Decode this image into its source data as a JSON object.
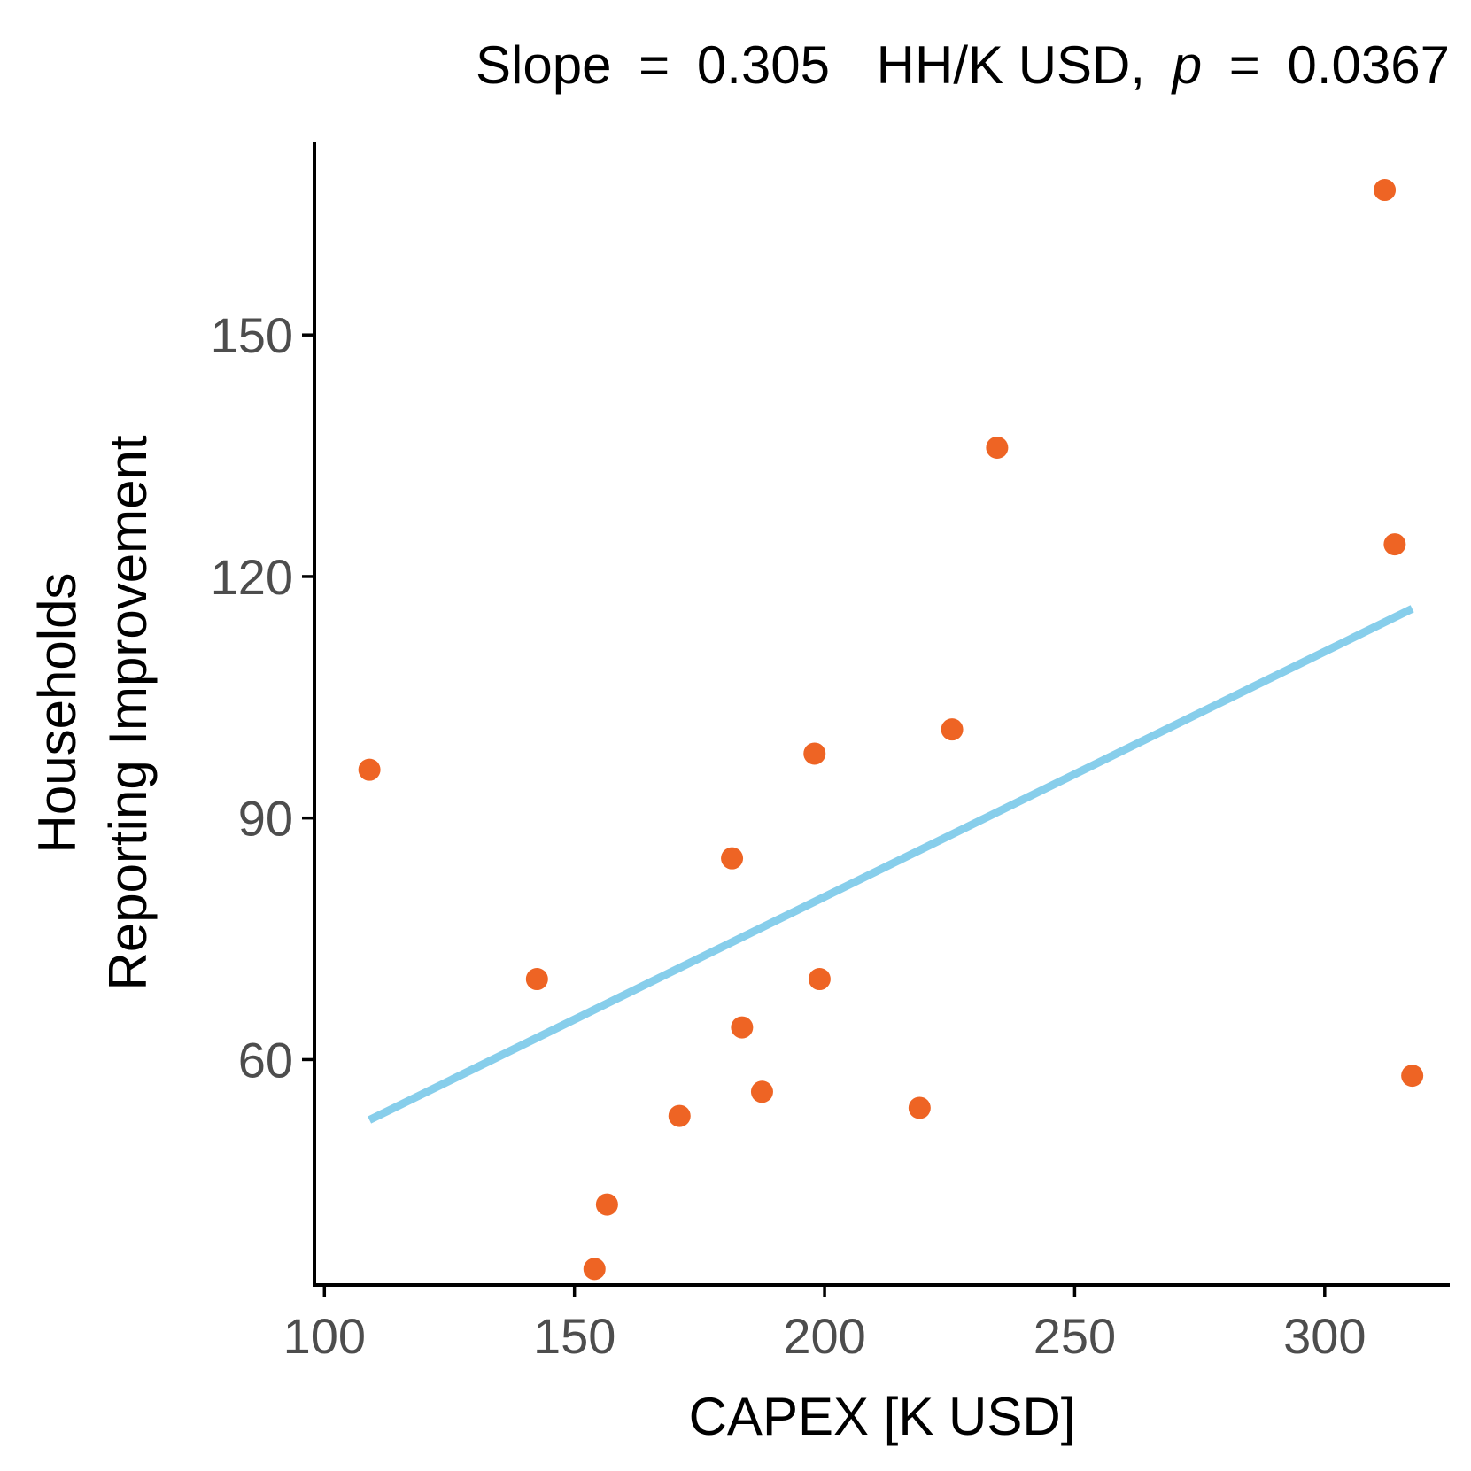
{
  "chart_data": {
    "type": "scatter",
    "title": {
      "prefix": "Slope",
      "slope_value": "0.305",
      "unit": "HH/K  USD",
      "p_symbol": "p",
      "p_value": "0.0367"
    },
    "xlabel": "CAPEX [K USD]",
    "ylabel_lines": [
      "Households",
      "Reporting Improvement"
    ],
    "xlim": [
      98,
      325
    ],
    "ylim": [
      32,
      174
    ],
    "xticks": [
      100,
      150,
      200,
      250,
      300
    ],
    "yticks": [
      60,
      90,
      120,
      150
    ],
    "grid": false,
    "series": [
      {
        "points": [
          [
            109,
            96
          ],
          [
            142.5,
            70
          ],
          [
            154,
            34
          ],
          [
            156.5,
            42
          ],
          [
            171,
            53
          ],
          [
            181.5,
            85
          ],
          [
            183.5,
            64
          ],
          [
            187.5,
            56
          ],
          [
            198,
            98
          ],
          [
            199,
            70
          ],
          [
            219,
            54
          ],
          [
            225.5,
            101
          ],
          [
            234.5,
            136
          ],
          [
            312,
            168
          ],
          [
            314,
            124
          ],
          [
            317.5,
            58
          ]
        ]
      }
    ],
    "fit_line": {
      "x": [
        109,
        317.5
      ],
      "y": [
        52.5,
        116
      ]
    },
    "colors": {
      "points": "#EE6424",
      "fit_line": "#87CEEB",
      "axis": "#000000",
      "tick_label": "#4d4d4d"
    }
  }
}
